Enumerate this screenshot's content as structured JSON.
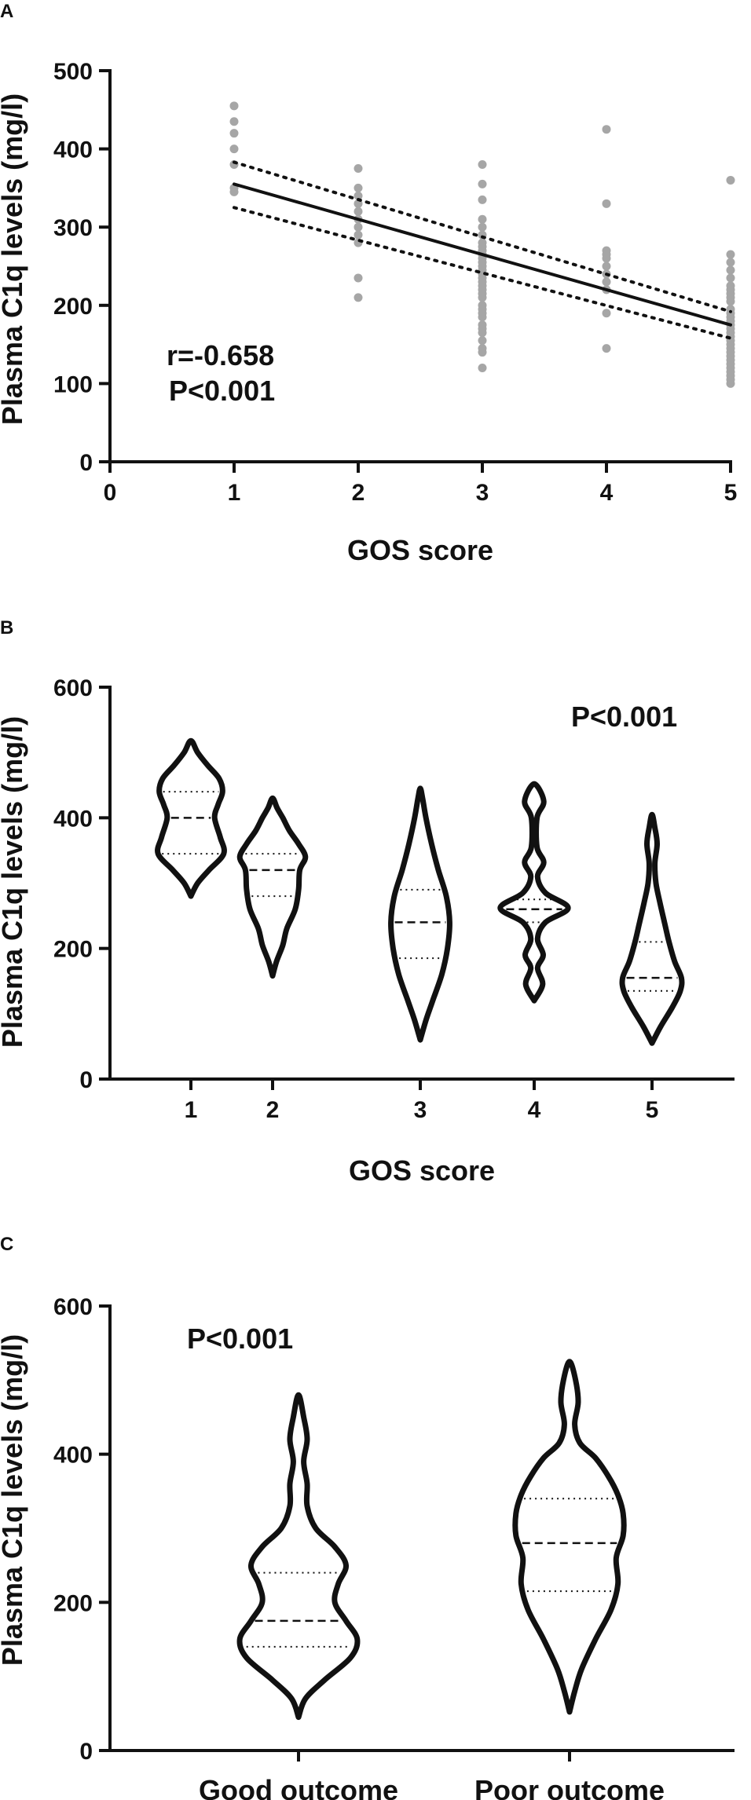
{
  "chart_data": [
    {
      "panel": "A",
      "type": "scatter",
      "xlabel": "GOS score",
      "ylabel": "Plasma C1q levels (mg/l)",
      "xlim": [
        0,
        5
      ],
      "ylim": [
        0,
        500
      ],
      "xticks": [
        "0",
        "1",
        "2",
        "3",
        "4",
        "5"
      ],
      "yticks": [
        "0",
        "100",
        "200",
        "300",
        "400",
        "500"
      ],
      "annotations": [
        "r=-0.658",
        "P<0.001"
      ],
      "points_color": "#a6a6a6",
      "groups": [
        {
          "x": 1,
          "y": [
            455,
            435,
            420,
            400,
            380,
            350,
            345
          ]
        },
        {
          "x": 2,
          "y": [
            375,
            350,
            340,
            330,
            320,
            310,
            300,
            290,
            280,
            235,
            210
          ]
        },
        {
          "x": 3,
          "y": [
            380,
            355,
            335,
            310,
            300,
            290,
            280,
            275,
            270,
            265,
            260,
            255,
            250,
            245,
            240,
            235,
            230,
            225,
            220,
            215,
            210,
            200,
            195,
            190,
            185,
            175,
            170,
            165,
            155,
            145,
            140,
            120
          ]
        },
        {
          "x": 4,
          "y": [
            425,
            330,
            270,
            265,
            260,
            250,
            240,
            230,
            220,
            190,
            145
          ]
        },
        {
          "x": 5,
          "y": [
            360,
            265,
            255,
            245,
            235,
            225,
            220,
            215,
            210,
            205,
            195,
            190,
            185,
            180,
            175,
            170,
            165,
            160,
            155,
            150,
            145,
            140,
            135,
            130,
            125,
            120,
            115,
            110,
            105,
            100
          ]
        }
      ],
      "regression": {
        "x": [
          1,
          5
        ],
        "y": [
          355,
          175
        ]
      },
      "ci_upper": {
        "x": [
          1,
          5
        ],
        "y": [
          383,
          192
        ]
      },
      "ci_lower": {
        "x": [
          1,
          5
        ],
        "y": [
          325,
          158
        ]
      }
    },
    {
      "panel": "B",
      "type": "violin",
      "xlabel": "GOS score",
      "ylabel": "Plasma C1q levels (mg/l)",
      "ylim": [
        0,
        600
      ],
      "yticks": [
        "0",
        "200",
        "400",
        "600"
      ],
      "categories": [
        "1",
        "2",
        "3",
        "4",
        "5"
      ],
      "annotations": [
        "P<0.001"
      ],
      "violins": [
        {
          "category": "1",
          "min": 280,
          "max": 518,
          "q1": 345,
          "median": 400,
          "q3": 440,
          "profile": [
            [
              280,
              0.0
            ],
            [
              300,
              0.12
            ],
            [
              320,
              0.32
            ],
            [
              345,
              0.58
            ],
            [
              370,
              0.52
            ],
            [
              400,
              0.42
            ],
            [
              420,
              0.48
            ],
            [
              440,
              0.56
            ],
            [
              460,
              0.5
            ],
            [
              480,
              0.3
            ],
            [
              500,
              0.12
            ],
            [
              518,
              0.0
            ]
          ]
        },
        {
          "category": "2",
          "min": 158,
          "max": 430,
          "q1": 280,
          "median": 320,
          "q3": 345,
          "profile": [
            [
              158,
              0.0
            ],
            [
              180,
              0.07
            ],
            [
              205,
              0.18
            ],
            [
              230,
              0.25
            ],
            [
              260,
              0.4
            ],
            [
              290,
              0.46
            ],
            [
              320,
              0.48
            ],
            [
              340,
              0.58
            ],
            [
              360,
              0.46
            ],
            [
              380,
              0.3
            ],
            [
              400,
              0.18
            ],
            [
              415,
              0.08
            ],
            [
              430,
              0.0
            ]
          ]
        },
        {
          "category": "3",
          "min": 60,
          "max": 445,
          "q1": 185,
          "median": 240,
          "q3": 290,
          "profile": [
            [
              60,
              0.0
            ],
            [
              90,
              0.1
            ],
            [
              120,
              0.22
            ],
            [
              160,
              0.38
            ],
            [
              200,
              0.48
            ],
            [
              240,
              0.52
            ],
            [
              280,
              0.46
            ],
            [
              320,
              0.32
            ],
            [
              360,
              0.2
            ],
            [
              400,
              0.1
            ],
            [
              430,
              0.04
            ],
            [
              445,
              0.0
            ]
          ]
        },
        {
          "category": "4",
          "min": 120,
          "max": 452,
          "q1": 240,
          "median": 260,
          "q3": 275,
          "profile": [
            [
              120,
              0.0
            ],
            [
              145,
              0.15
            ],
            [
              170,
              0.06
            ],
            [
              190,
              0.16
            ],
            [
              215,
              0.06
            ],
            [
              240,
              0.2
            ],
            [
              262,
              0.6
            ],
            [
              285,
              0.2
            ],
            [
              310,
              0.06
            ],
            [
              332,
              0.17
            ],
            [
              355,
              0.05
            ],
            [
              400,
              0.05
            ],
            [
              425,
              0.17
            ],
            [
              452,
              0.0
            ]
          ]
        },
        {
          "category": "5",
          "min": 55,
          "max": 405,
          "q1": 135,
          "median": 155,
          "q3": 210,
          "profile": [
            [
              55,
              0.0
            ],
            [
              80,
              0.15
            ],
            [
              110,
              0.36
            ],
            [
              135,
              0.5
            ],
            [
              155,
              0.52
            ],
            [
              180,
              0.4
            ],
            [
              210,
              0.3
            ],
            [
              240,
              0.22
            ],
            [
              270,
              0.14
            ],
            [
              300,
              0.07
            ],
            [
              330,
              0.05
            ],
            [
              360,
              0.09
            ],
            [
              385,
              0.05
            ],
            [
              405,
              0.0
            ]
          ]
        }
      ]
    },
    {
      "panel": "C",
      "type": "violin",
      "ylabel": "Plasma C1q levels (mg/l)",
      "ylim": [
        0,
        600
      ],
      "yticks": [
        "0",
        "200",
        "400",
        "600"
      ],
      "categories": [
        "Good outcome",
        "Poor outcome"
      ],
      "annotations": [
        "P<0.001"
      ],
      "violins": [
        {
          "category": "Good outcome",
          "min": 45,
          "max": 480,
          "q1": 140,
          "median": 175,
          "q3": 240,
          "profile": [
            [
              45,
              0.0
            ],
            [
              70,
              0.08
            ],
            [
              95,
              0.3
            ],
            [
              125,
              0.6
            ],
            [
              150,
              0.68
            ],
            [
              175,
              0.55
            ],
            [
              200,
              0.42
            ],
            [
              225,
              0.46
            ],
            [
              250,
              0.55
            ],
            [
              275,
              0.42
            ],
            [
              300,
              0.2
            ],
            [
              330,
              0.1
            ],
            [
              360,
              0.1
            ],
            [
              390,
              0.06
            ],
            [
              420,
              0.1
            ],
            [
              450,
              0.06
            ],
            [
              480,
              0.0
            ]
          ]
        },
        {
          "category": "Poor outcome",
          "min": 52,
          "max": 525,
          "q1": 215,
          "median": 280,
          "q3": 340,
          "profile": [
            [
              52,
              0.0
            ],
            [
              80,
              0.06
            ],
            [
              110,
              0.14
            ],
            [
              150,
              0.3
            ],
            [
              190,
              0.48
            ],
            [
              225,
              0.56
            ],
            [
              260,
              0.54
            ],
            [
              290,
              0.62
            ],
            [
              320,
              0.62
            ],
            [
              345,
              0.56
            ],
            [
              370,
              0.45
            ],
            [
              395,
              0.3
            ],
            [
              415,
              0.12
            ],
            [
              440,
              0.06
            ],
            [
              470,
              0.1
            ],
            [
              500,
              0.07
            ],
            [
              525,
              0.0
            ]
          ]
        }
      ]
    }
  ]
}
